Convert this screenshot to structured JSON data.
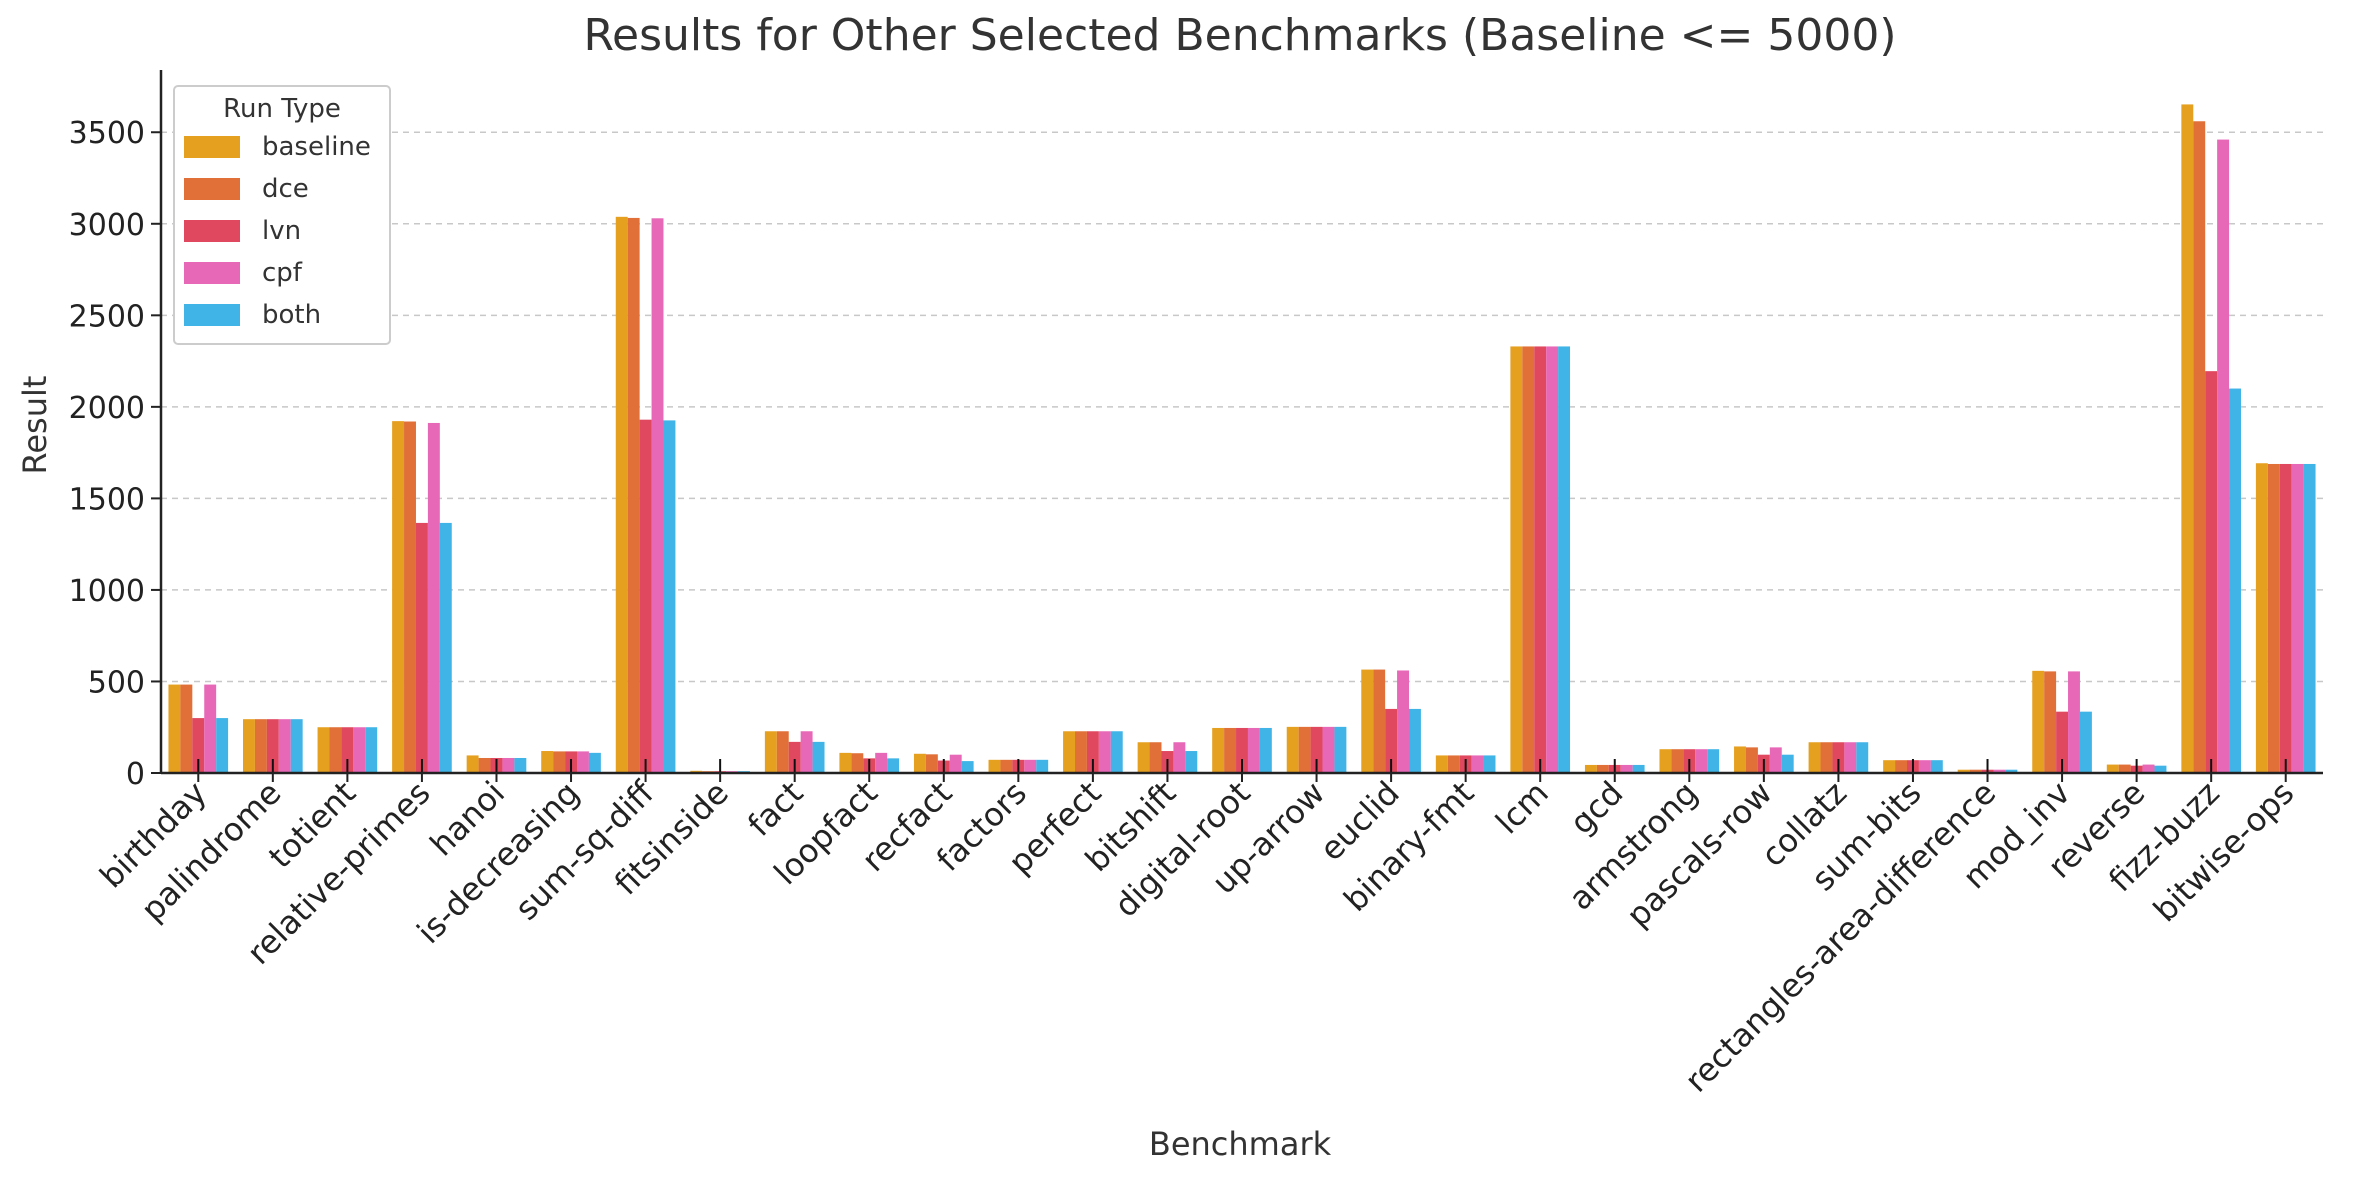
{
  "chart_data": {
    "type": "bar",
    "title": "Results for Other Selected Benchmarks (Baseline <= 5000)",
    "xlabel": "Benchmark",
    "ylabel": "Result",
    "ylim": [
      0,
      3840
    ],
    "yticks": [
      0,
      500,
      1000,
      1500,
      2000,
      2500,
      3000,
      3500
    ],
    "grid": "horizontal-dashed",
    "legend": {
      "title": "Run Type",
      "position": "top-left"
    },
    "categories": [
      "birthday",
      "palindrome",
      "totient",
      "relative-primes",
      "hanoi",
      "is-decreasing",
      "sum-sq-diff",
      "fitsinside",
      "fact",
      "loopfact",
      "recfact",
      "factors",
      "perfect",
      "bitshift",
      "digital-root",
      "up-arrow",
      "euclid",
      "binary-fmt",
      "lcm",
      "gcd",
      "armstrong",
      "pascals-row",
      "collatz",
      "sum-bits",
      "rectangles-area-difference",
      "mod_inv",
      "reverse",
      "fizz-buzz",
      "bitwise-ops"
    ],
    "series": [
      {
        "name": "baseline",
        "color": "#E6A020",
        "values": [
          483,
          294,
          250,
          1922,
          96,
          120,
          3038,
          12,
          228,
          110,
          105,
          72,
          228,
          168,
          246,
          252,
          565,
          96,
          2330,
          44,
          130,
          145,
          168,
          70,
          18,
          558,
          46,
          3652,
          1692
        ]
      },
      {
        "name": "dce",
        "color": "#E07038",
        "values": [
          483,
          294,
          250,
          1920,
          82,
          118,
          3032,
          10,
          228,
          108,
          102,
          72,
          228,
          168,
          246,
          252,
          565,
          96,
          2330,
          44,
          130,
          140,
          168,
          70,
          18,
          555,
          46,
          3560,
          1688
        ]
      },
      {
        "name": "lvn",
        "color": "#E04860",
        "values": [
          300,
          294,
          250,
          1366,
          82,
          118,
          1930,
          10,
          170,
          80,
          68,
          72,
          228,
          120,
          246,
          252,
          350,
          96,
          2330,
          44,
          130,
          100,
          168,
          70,
          18,
          335,
          40,
          2195,
          1688
        ]
      },
      {
        "name": "cpf",
        "color": "#E868B8",
        "values": [
          483,
          294,
          250,
          1912,
          82,
          118,
          3030,
          10,
          228,
          110,
          100,
          72,
          228,
          168,
          246,
          252,
          560,
          96,
          2330,
          44,
          130,
          140,
          168,
          70,
          18,
          555,
          46,
          3460,
          1688
        ]
      },
      {
        "name": "both",
        "color": "#40B4E6",
        "values": [
          300,
          294,
          250,
          1366,
          82,
          110,
          1926,
          10,
          170,
          80,
          65,
          72,
          228,
          120,
          246,
          252,
          350,
          96,
          2330,
          44,
          130,
          100,
          168,
          70,
          18,
          335,
          40,
          2100,
          1688
        ]
      }
    ]
  }
}
